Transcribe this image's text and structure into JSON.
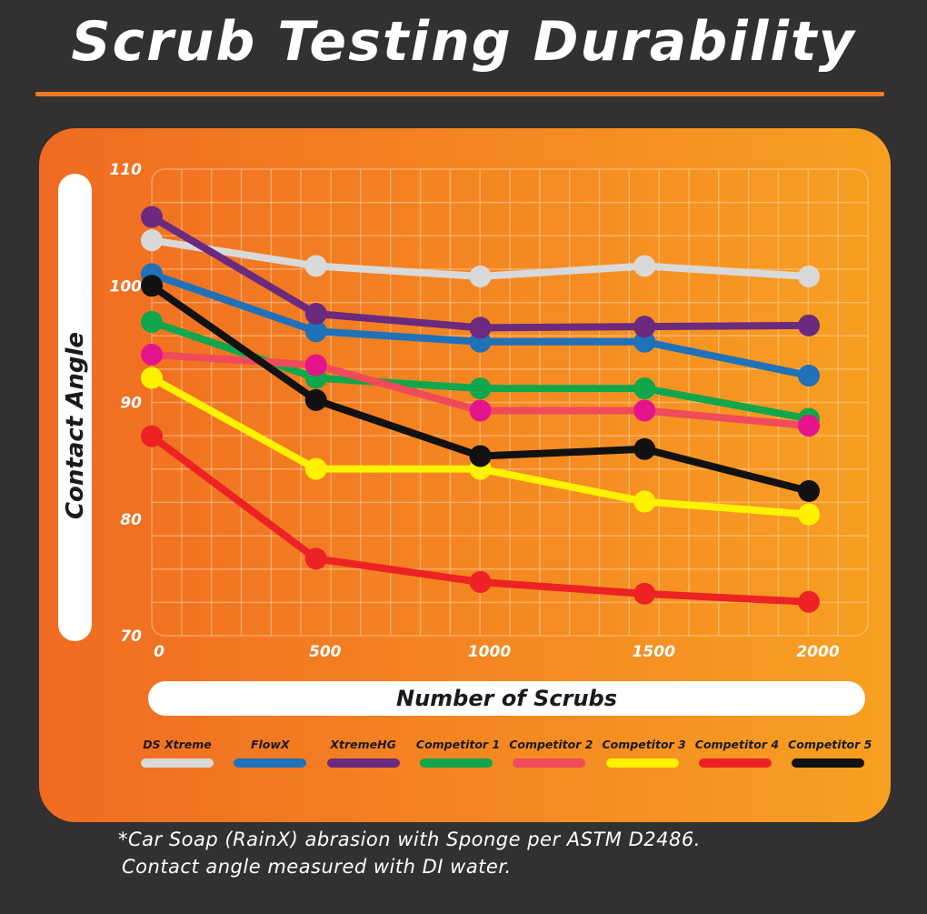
{
  "chart_data": {
    "type": "line",
    "title": "Scrub Testing Durability",
    "xlabel": "Number of Scrubs",
    "ylabel": "Contact Angle",
    "x": [
      0,
      500,
      1000,
      1500,
      2000
    ],
    "xlim": [
      0,
      2000
    ],
    "ylim": [
      70,
      110
    ],
    "yticks": [
      "110",
      "100",
      "90",
      "80",
      "70"
    ],
    "xticks": [
      "0",
      "500",
      "1000",
      "1500",
      "2000"
    ],
    "grid": true,
    "legend": "bottom",
    "series": [
      {
        "name": "DS Xtreme",
        "color": "#d9d9d9",
        "values": [
          103.9,
          101.7,
          100.8,
          101.7,
          100.8
        ]
      },
      {
        "name": "FlowX",
        "color": "#1f71b8",
        "values": [
          101,
          96.1,
          95.2,
          95.2,
          92.3
        ]
      },
      {
        "name": "XtremeHG",
        "color": "#6b2a7d",
        "values": [
          105.9,
          97.6,
          96.4,
          96.5,
          96.6
        ]
      },
      {
        "name": "Competitor 1",
        "color": "#10a64b",
        "values": [
          96.9,
          92.1,
          91.2,
          91.2,
          88.6
        ]
      },
      {
        "name": "Competitor 2",
        "color": "#ef4b5a",
        "values": [
          94.1,
          93.2,
          89.3,
          89.3,
          88
        ]
      },
      {
        "name": "Competitor 3",
        "color": "#fff200",
        "values": [
          92.1,
          84.3,
          84.3,
          81.5,
          80.4
        ]
      },
      {
        "name": "Competitor 4",
        "color": "#ec2225",
        "values": [
          87.1,
          76.6,
          74.6,
          73.6,
          72.9
        ]
      },
      {
        "name": "Competitor 5",
        "color": "#111111",
        "values": [
          100,
          90.2,
          85.4,
          86,
          82.4
        ]
      }
    ]
  },
  "series_point_colors": {
    "Competitor 2": "#e5148c"
  },
  "footnote": {
    "line1": "*Car Soap (RainX) abrasion with Sponge per ASTM D2486.",
    "line2": "Contact angle measured with DI water."
  }
}
